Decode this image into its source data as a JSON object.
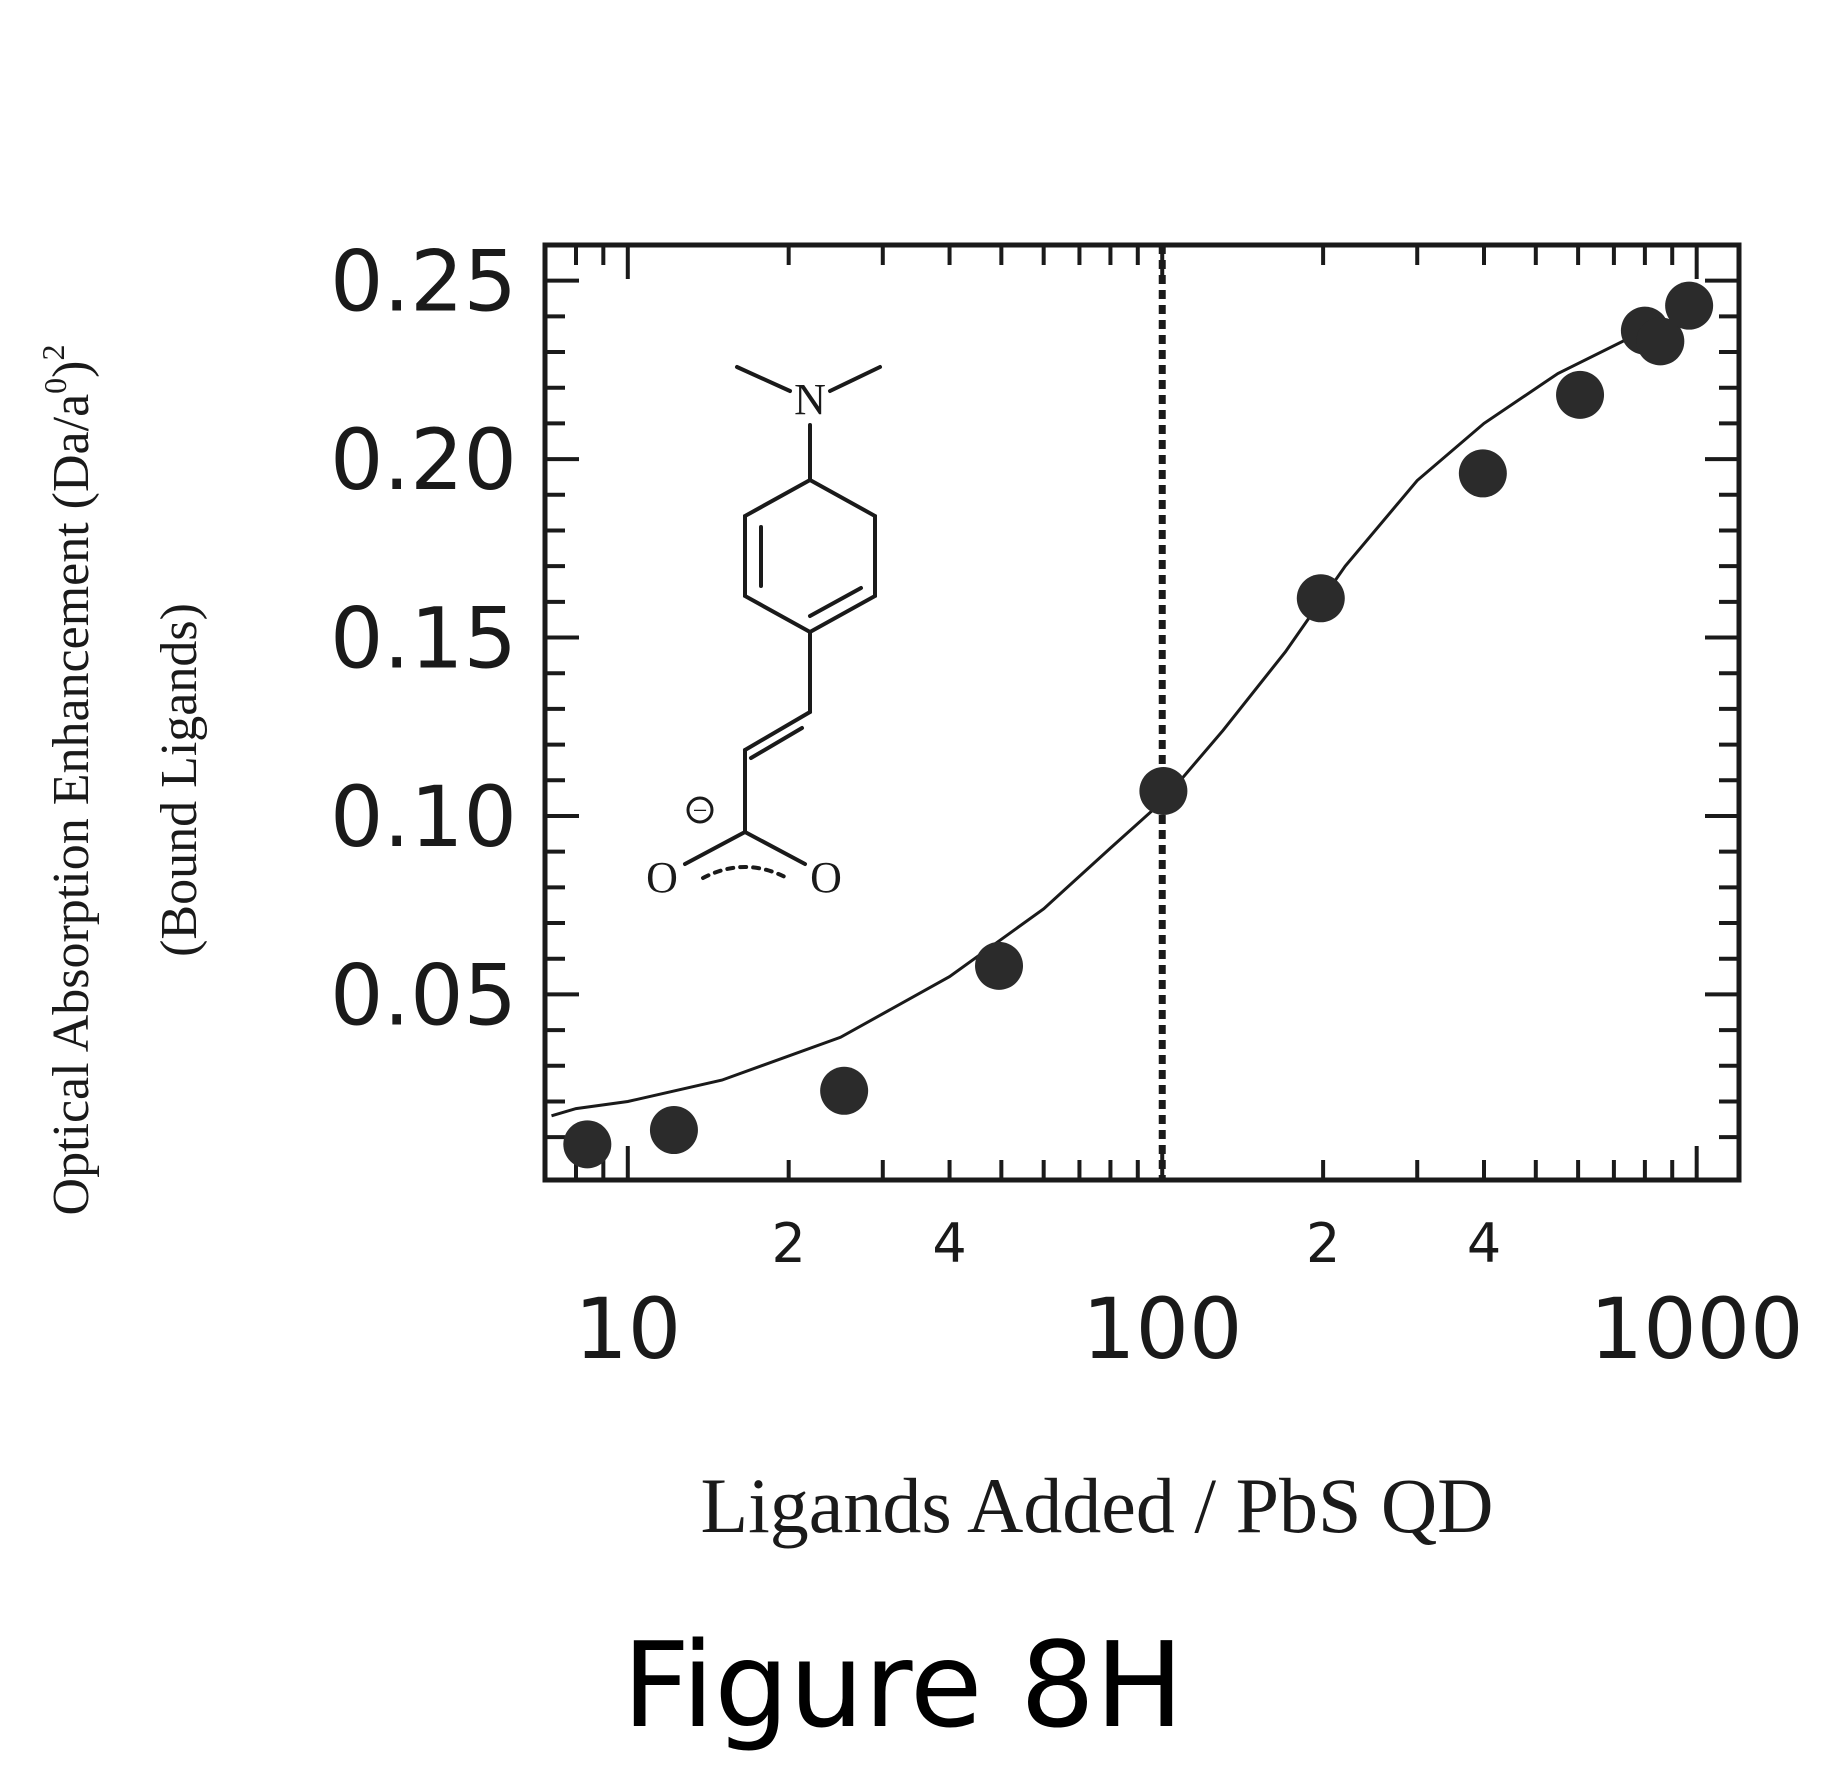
{
  "chart_data": {
    "type": "scatter",
    "x_scale": "log",
    "xlim": [
      7,
      1200
    ],
    "ylim": [
      -0.002,
      0.26
    ],
    "xlabel": "Ligands Added / PbS QD",
    "ylabel": {
      "main": "Optical Absorption Enhancement (Da/a",
      "sup1": "0",
      "close": ")",
      "sup2": "2",
      "line2": "(Bound Ligands)"
    },
    "y_ticks": [
      {
        "value": 0.05,
        "label": "0.05"
      },
      {
        "value": 0.1,
        "label": "0.10"
      },
      {
        "value": 0.15,
        "label": "0.15"
      },
      {
        "value": 0.2,
        "label": "0.20"
      },
      {
        "value": 0.25,
        "label": "0.25"
      }
    ],
    "x_major_labels": [
      {
        "value": 10,
        "label": "10"
      },
      {
        "value": 100,
        "label": "100"
      },
      {
        "value": 1000,
        "label": "1000"
      }
    ],
    "x_minor_labels": [
      {
        "value": 20,
        "label": "2"
      },
      {
        "value": 40,
        "label": "4"
      },
      {
        "value": 200,
        "label": "2"
      },
      {
        "value": 400,
        "label": "4"
      }
    ],
    "vertical_marker_x": 100,
    "series": [
      {
        "style": "markers",
        "points": [
          {
            "x": 8.4,
            "y": 0.008
          },
          {
            "x": 12.2,
            "y": 0.012
          },
          {
            "x": 25.4,
            "y": 0.023
          },
          {
            "x": 49.5,
            "y": 0.058
          },
          {
            "x": 100.5,
            "y": 0.107
          },
          {
            "x": 198,
            "y": 0.161
          },
          {
            "x": 398,
            "y": 0.196
          },
          {
            "x": 605,
            "y": 0.218
          },
          {
            "x": 800,
            "y": 0.236
          },
          {
            "x": 855,
            "y": 0.233
          },
          {
            "x": 968,
            "y": 0.243
          }
        ]
      },
      {
        "style": "line",
        "points": [
          {
            "x": 7.2,
            "y": 0.016
          },
          {
            "x": 8,
            "y": 0.018
          },
          {
            "x": 10,
            "y": 0.02
          },
          {
            "x": 15,
            "y": 0.026
          },
          {
            "x": 25,
            "y": 0.038
          },
          {
            "x": 40,
            "y": 0.055
          },
          {
            "x": 60,
            "y": 0.074
          },
          {
            "x": 80,
            "y": 0.091
          },
          {
            "x": 100,
            "y": 0.104
          },
          {
            "x": 130,
            "y": 0.124
          },
          {
            "x": 170,
            "y": 0.146
          },
          {
            "x": 220,
            "y": 0.17
          },
          {
            "x": 300,
            "y": 0.194
          },
          {
            "x": 400,
            "y": 0.21
          },
          {
            "x": 550,
            "y": 0.224
          },
          {
            "x": 750,
            "y": 0.234
          },
          {
            "x": 1000,
            "y": 0.241
          }
        ]
      }
    ]
  },
  "inset": {
    "atoms": [
      "N",
      "O",
      "O"
    ],
    "charge": "−"
  },
  "caption": "Figure 8H"
}
